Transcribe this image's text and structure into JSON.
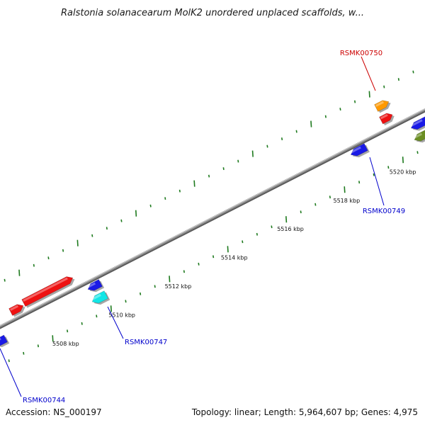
{
  "title": "Ralstonia solanacearum MolK2 unordered unplaced scaffolds, w...",
  "footer": {
    "accession": "Accession: NS_000197",
    "summary": "Topology: linear; Length: 5,964,607 bp; Genes: 4,975"
  },
  "colors": {
    "backbone": "#8c8c8c",
    "tick": "#1e7a1e",
    "forward_label": "#cc0000",
    "reverse_label": "#0000cc"
  },
  "scale_labels": [
    {
      "kbp": 5508,
      "text": "5508 kbp"
    },
    {
      "kbp": 5510,
      "text": "5510 kbp"
    },
    {
      "kbp": 5512,
      "text": "5512 kbp"
    },
    {
      "kbp": 5514,
      "text": "5514 kbp"
    },
    {
      "kbp": 5516,
      "text": "5516 kbp"
    },
    {
      "kbp": 5518,
      "text": "5518 kbp"
    },
    {
      "kbp": 5520,
      "text": "5520 kbp"
    }
  ],
  "labelled_genes": [
    {
      "id": "RSMK00744",
      "strand": "reverse",
      "color": "#0000cc"
    },
    {
      "id": "RSMK00747",
      "strand": "reverse",
      "color": "#0000cc"
    },
    {
      "id": "RSMK00749",
      "strand": "reverse",
      "color": "#0000cc"
    },
    {
      "id": "RSMK00750",
      "strand": "forward",
      "color": "#cc0000"
    }
  ],
  "gene_colors": {
    "red": "#ee1111",
    "blue": "#1a1ae6",
    "cyan": "#11e6e6",
    "orange": "#ff9900",
    "olive": "#6b8e23"
  }
}
